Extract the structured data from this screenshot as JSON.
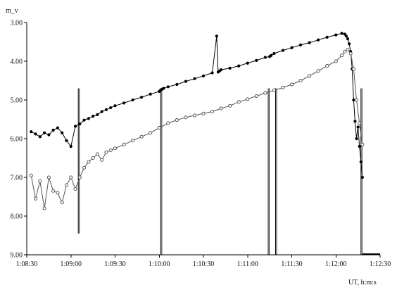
{
  "chart_data": {
    "type": "line",
    "title": "",
    "ylabel": "m_v",
    "xlabel": "UT, h:m:s",
    "y_inverted": true,
    "ylim": [
      3.0,
      9.0
    ],
    "xlim": [
      "1:08:30",
      "1:12:30"
    ],
    "yticks": [
      "3.00",
      "4.00",
      "5.00",
      "6.00",
      "7.00",
      "8.00",
      "9.00"
    ],
    "xticks": [
      "1:08:30",
      "1:09:00",
      "1:09:30",
      "1:10:00",
      "1:10:30",
      "1:11:00",
      "1:11:30",
      "1:12:00",
      "1:12:30"
    ],
    "grid": false,
    "legend": "none",
    "series": [
      {
        "marker": "filled",
        "color": "#000000",
        "x": [
          "1:08:33",
          "1:08:36",
          "1:08:39",
          "1:08:42",
          "1:08:45",
          "1:08:48",
          "1:08:51",
          "1:08:54",
          "1:08:57",
          "1:09:00",
          "1:09:03",
          "1:09:06",
          "1:09:09",
          "1:09:12",
          "1:09:15",
          "1:09:18",
          "1:09:21",
          "1:09:24",
          "1:09:27",
          "1:09:30",
          "1:09:36",
          "1:09:42",
          "1:09:48",
          "1:09:54",
          "1:10:00",
          "1:10:01",
          "1:10:02",
          "1:10:03",
          "1:10:06",
          "1:10:12",
          "1:10:18",
          "1:10:24",
          "1:10:30",
          "1:10:36",
          "1:10:39",
          "1:10:40",
          "1:10:41",
          "1:10:42",
          "1:10:48",
          "1:10:54",
          "1:11:00",
          "1:11:06",
          "1:11:12",
          "1:11:15",
          "1:11:16",
          "1:11:18",
          "1:11:24",
          "1:11:30",
          "1:11:36",
          "1:11:42",
          "1:11:48",
          "1:11:54",
          "1:12:00",
          "1:12:04",
          "1:12:06",
          "1:12:07",
          "1:12:08",
          "1:12:09",
          "1:12:10",
          "1:12:11",
          "1:12:12",
          "1:12:13",
          "1:12:14",
          "1:12:15",
          "1:12:16",
          "1:12:17",
          "1:12:18"
        ],
        "y": [
          5.82,
          5.88,
          5.95,
          5.85,
          5.9,
          5.78,
          5.72,
          5.85,
          6.05,
          6.2,
          5.68,
          5.62,
          5.52,
          5.48,
          5.42,
          5.38,
          5.3,
          5.25,
          5.2,
          5.15,
          5.08,
          5.0,
          4.93,
          4.85,
          4.78,
          4.74,
          4.72,
          4.7,
          4.66,
          4.6,
          4.52,
          4.45,
          4.38,
          4.3,
          3.35,
          4.28,
          4.25,
          4.22,
          4.18,
          4.12,
          4.05,
          3.98,
          3.9,
          3.88,
          3.85,
          3.8,
          3.72,
          3.65,
          3.58,
          3.52,
          3.45,
          3.38,
          3.32,
          3.28,
          3.3,
          3.35,
          3.42,
          3.55,
          3.75,
          4.2,
          5.0,
          5.55,
          6.0,
          5.7,
          6.2,
          6.6,
          7.0
        ]
      },
      {
        "marker": "open",
        "color": "#555555",
        "x": [
          "1:08:33",
          "1:08:36",
          "1:08:39",
          "1:08:42",
          "1:08:45",
          "1:08:48",
          "1:08:51",
          "1:08:54",
          "1:08:57",
          "1:09:00",
          "1:09:03",
          "1:09:06",
          "1:09:09",
          "1:09:12",
          "1:09:15",
          "1:09:18",
          "1:09:21",
          "1:09:24",
          "1:09:27",
          "1:09:30",
          "1:09:36",
          "1:09:42",
          "1:09:48",
          "1:09:54",
          "1:10:00",
          "1:10:06",
          "1:10:12",
          "1:10:18",
          "1:10:24",
          "1:10:30",
          "1:10:36",
          "1:10:42",
          "1:10:48",
          "1:10:54",
          "1:11:00",
          "1:11:06",
          "1:11:12",
          "1:11:18",
          "1:11:24",
          "1:11:30",
          "1:11:36",
          "1:11:42",
          "1:11:48",
          "1:11:54",
          "1:12:00",
          "1:12:04",
          "1:12:06",
          "1:12:08",
          "1:12:10",
          "1:12:12",
          "1:12:14",
          "1:12:16",
          "1:12:18"
        ],
        "y": [
          6.95,
          7.55,
          7.1,
          7.8,
          7.0,
          7.35,
          7.4,
          7.65,
          7.2,
          7.0,
          7.3,
          7.0,
          6.75,
          6.6,
          6.5,
          6.4,
          6.55,
          6.35,
          6.3,
          6.25,
          6.15,
          6.05,
          5.95,
          5.85,
          5.72,
          5.6,
          5.52,
          5.45,
          5.4,
          5.35,
          5.3,
          5.22,
          5.15,
          5.05,
          4.98,
          4.9,
          4.82,
          4.75,
          4.68,
          4.6,
          4.5,
          4.38,
          4.25,
          4.12,
          4.0,
          3.85,
          3.75,
          3.7,
          3.8,
          4.2,
          5.0,
          5.6,
          6.15
        ]
      }
    ],
    "dropouts": [
      {
        "x": "1:09:05",
        "to_y": 8.45
      },
      {
        "x": "1:10:01",
        "to_y": 9.0
      },
      {
        "x": "1:11:14",
        "to_y": 9.0
      },
      {
        "x": "1:11:19",
        "to_y": 9.0
      },
      {
        "x": "1:12:17",
        "to_y": 9.0
      }
    ]
  }
}
